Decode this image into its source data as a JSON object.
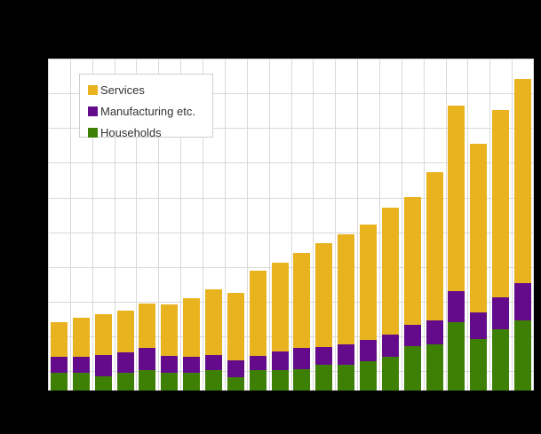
{
  "chart": {
    "title": "",
    "background_color": "#000000",
    "plot_background_color": "#ffffff",
    "grid_color": "#d9d9d9"
  },
  "legend": {
    "items": [
      {
        "label": "Services",
        "color": "#e9b320"
      },
      {
        "label": "Manufacturing etc.",
        "color": "#640b8c"
      },
      {
        "label": "Households",
        "color": "#3e8005"
      }
    ]
  },
  "chart_data": {
    "type": "bar",
    "stacked": true,
    "bar_count": 22,
    "categories": [
      1,
      2,
      3,
      4,
      5,
      6,
      7,
      8,
      9,
      10,
      11,
      12,
      13,
      14,
      15,
      16,
      17,
      18,
      19,
      20,
      21,
      22
    ],
    "x_tick_labels_visible": false,
    "y_tick_labels_visible": false,
    "axis_labels_visible": false,
    "grid": true,
    "legend_position": "top-left-inside",
    "ylim": [
      0,
      95.5
    ],
    "gridline_interval": 10,
    "value_scale_note": "unlabeled axis; values estimated in gridline units (one horizontal gridline spacing = 10)",
    "series": [
      {
        "name": "Households",
        "color": "#3e8005",
        "values": [
          5.0,
          5.2,
          4.1,
          5.2,
          5.9,
          5.0,
          5.2,
          5.8,
          3.9,
          5.8,
          5.9,
          6.2,
          7.5,
          7.5,
          8.5,
          9.8,
          12.8,
          13.4,
          19.7,
          14.8,
          17.5,
          20.1
        ]
      },
      {
        "name": "Manufacturing etc.",
        "color": "#640b8c",
        "values": [
          4.6,
          4.6,
          6.2,
          5.9,
          6.3,
          5.0,
          4.6,
          4.5,
          4.7,
          4.1,
          5.3,
          6.0,
          5.1,
          5.7,
          6.0,
          6.2,
          6.2,
          6.8,
          9.0,
          7.6,
          9.2,
          10.9
        ]
      },
      {
        "name": "Services",
        "color": "#e9b320",
        "values": [
          10.1,
          11.1,
          11.6,
          11.8,
          12.8,
          14.7,
          16.7,
          18.8,
          19.4,
          24.7,
          25.7,
          27.5,
          29.9,
          31.8,
          33.2,
          36.7,
          36.6,
          42.6,
          53.4,
          48.6,
          53.9,
          58.6
        ]
      }
    ]
  }
}
